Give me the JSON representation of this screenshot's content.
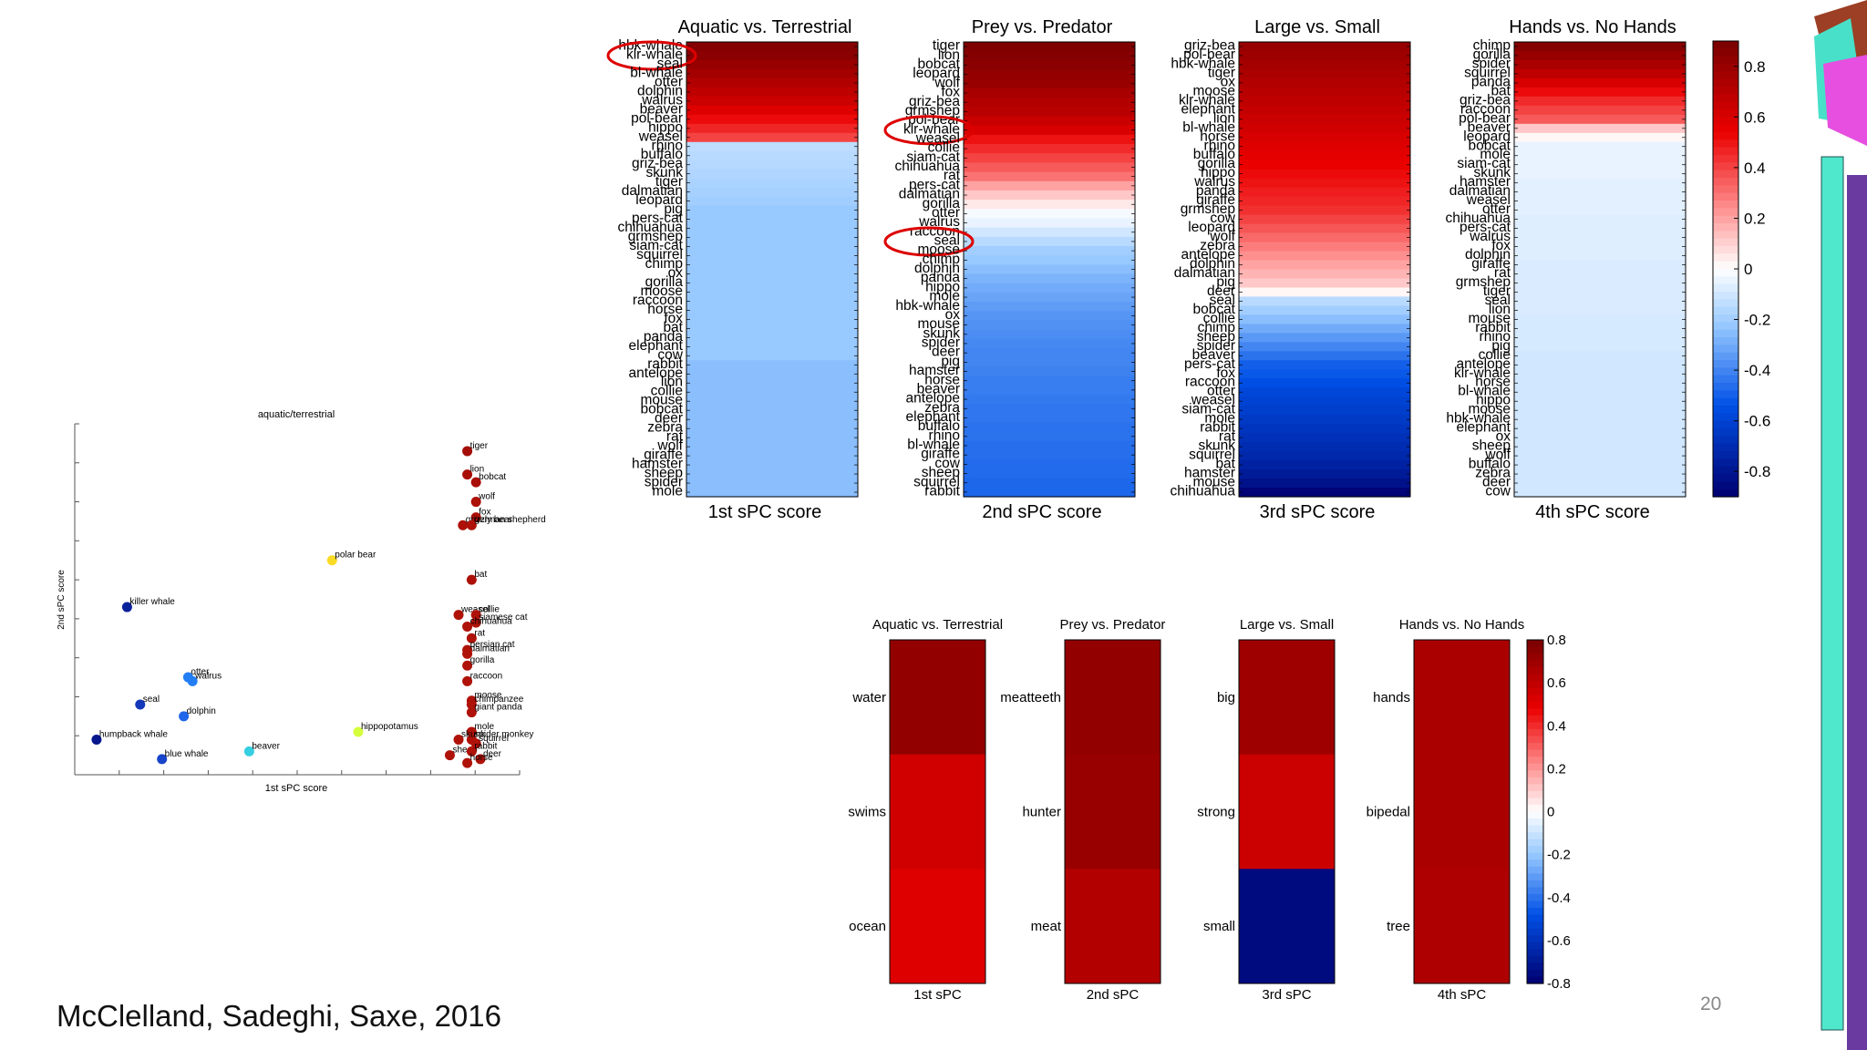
{
  "slide": {
    "citation": "McClelland, Sadeghi, Saxe, 2016",
    "page_number": "20"
  },
  "colorbar_ticks": [
    "0.8",
    "0.6",
    "0.4",
    "0.2",
    "0",
    "-0.2",
    "-0.4",
    "-0.6",
    "-0.8"
  ],
  "chart_data": [
    {
      "type": "heatmap",
      "title": "Aquatic vs. Terrestrial",
      "xlabel": "1st sPC score",
      "colormap": "diverging blue-white-red",
      "clim": [
        -0.9,
        0.9
      ],
      "labels": [
        "hbk-whale",
        "klr-whale",
        "seal",
        "bl-whale",
        "otter",
        "dolphin",
        "walrus",
        "beaver",
        "pol-bear",
        "hippo",
        "weasel",
        "rhino",
        "buffalo",
        "griz-bea",
        "skunk",
        "tiger",
        "dalmatian",
        "leopard",
        "pig",
        "pers-cat",
        "chihuahua",
        "grmshep",
        "siam-cat",
        "squirrel",
        "chimp",
        "ox",
        "gorilla",
        "moose",
        "raccoon",
        "horse",
        "fox",
        "bat",
        "panda",
        "elephant",
        "cow",
        "rabbit",
        "antelope",
        "lion",
        "collie",
        "mouse",
        "bobcat",
        "deer",
        "zebra",
        "rat",
        "wolf",
        "giraffe",
        "hamster",
        "sheep",
        "spider",
        "mole"
      ],
      "values": [
        0.86,
        0.84,
        0.8,
        0.76,
        0.72,
        0.68,
        0.64,
        0.58,
        0.52,
        0.46,
        0.4,
        -0.14,
        -0.15,
        -0.16,
        -0.17,
        -0.18,
        -0.19,
        -0.2,
        -0.22,
        -0.22,
        -0.22,
        -0.22,
        -0.22,
        -0.22,
        -0.22,
        -0.22,
        -0.22,
        -0.22,
        -0.22,
        -0.22,
        -0.22,
        -0.22,
        -0.22,
        -0.22,
        -0.22,
        -0.25,
        -0.25,
        -0.25,
        -0.25,
        -0.25,
        -0.25,
        -0.25,
        -0.25,
        -0.25,
        -0.25,
        -0.25,
        -0.25,
        -0.25,
        -0.25,
        -0.25
      ],
      "circled": [
        "klr-whale"
      ]
    },
    {
      "type": "heatmap",
      "title": "Prey vs. Predator",
      "xlabel": "2nd sPC score",
      "colormap": "diverging blue-white-red",
      "clim": [
        -0.9,
        0.9
      ],
      "labels": [
        "tiger",
        "lion",
        "bobcat",
        "leopard",
        "wolf",
        "fox",
        "griz-bea",
        "grmshep",
        "pol-bear",
        "klr-whale",
        "weasel",
        "collie",
        "siam-cat",
        "chihuahua",
        "rat",
        "pers-cat",
        "dalmatian",
        "gorilla",
        "otter",
        "walrus",
        "raccoon",
        "seal",
        "moose",
        "chimp",
        "dolphin",
        "panda",
        "hippo",
        "mole",
        "hbk-whale",
        "ox",
        "mouse",
        "skunk",
        "spider",
        "deer",
        "pig",
        "hamster",
        "horse",
        "beaver",
        "antelope",
        "zebra",
        "elephant",
        "buffalo",
        "rhino",
        "bl-whale",
        "giraffe",
        "cow",
        "sheep",
        "squirrel",
        "rabbit"
      ],
      "values": [
        0.88,
        0.86,
        0.84,
        0.82,
        0.8,
        0.75,
        0.72,
        0.7,
        0.65,
        0.6,
        0.5,
        0.45,
        0.4,
        0.35,
        0.3,
        0.2,
        0.12,
        0.05,
        -0.02,
        -0.05,
        -0.1,
        -0.15,
        -0.2,
        -0.22,
        -0.25,
        -0.28,
        -0.3,
        -0.32,
        -0.34,
        -0.36,
        -0.37,
        -0.38,
        -0.39,
        -0.4,
        -0.4,
        -0.41,
        -0.42,
        -0.42,
        -0.43,
        -0.44,
        -0.44,
        -0.45,
        -0.45,
        -0.46,
        -0.46,
        -0.47,
        -0.47,
        -0.48,
        -0.48
      ],
      "circled": [
        "klr-whale",
        "seal"
      ]
    },
    {
      "type": "heatmap",
      "title": "Large vs. Small",
      "xlabel": "3rd sPC score",
      "colormap": "diverging blue-white-red",
      "clim": [
        -0.9,
        0.9
      ],
      "labels": [
        "griz-bea",
        "pol-bear",
        "hbk-whale",
        "tiger",
        "ox",
        "moose",
        "klr-whale",
        "elephant",
        "lion",
        "bl-whale",
        "horse",
        "rhino",
        "buffalo",
        "gorilla",
        "hippo",
        "walrus",
        "panda",
        "giraffe",
        "grmshep",
        "cow",
        "leopard",
        "wolf",
        "zebra",
        "antelope",
        "dolphin",
        "dalmatian",
        "pig",
        "deer",
        "seal",
        "bobcat",
        "collie",
        "chimp",
        "sheep",
        "spider",
        "beaver",
        "pers-cat",
        "fox",
        "raccoon",
        "otter",
        "weasel",
        "siam-cat",
        "mole",
        "rabbit",
        "rat",
        "skunk",
        "squirrel",
        "bat",
        "hamster",
        "mouse",
        "chihuahua"
      ],
      "values": [
        0.8,
        0.78,
        0.76,
        0.74,
        0.72,
        0.7,
        0.68,
        0.66,
        0.64,
        0.62,
        0.6,
        0.58,
        0.56,
        0.54,
        0.52,
        0.5,
        0.48,
        0.46,
        0.44,
        0.4,
        0.36,
        0.32,
        0.28,
        0.24,
        0.2,
        0.16,
        0.12,
        0.02,
        -0.15,
        -0.2,
        -0.25,
        -0.3,
        -0.35,
        -0.4,
        -0.45,
        -0.5,
        -0.52,
        -0.55,
        -0.58,
        -0.6,
        -0.62,
        -0.64,
        -0.66,
        -0.68,
        -0.7,
        -0.72,
        -0.75,
        -0.78,
        -0.82,
        -0.88
      ],
      "circled": []
    },
    {
      "type": "heatmap",
      "title": "Hands vs. No Hands",
      "xlabel": "4th sPC score",
      "colormap": "diverging blue-white-red",
      "clim": [
        -0.9,
        0.9
      ],
      "labels": [
        "chimp",
        "gorilla",
        "spider",
        "squirrel",
        "panda",
        "bat",
        "griz-bea",
        "raccoon",
        "pol-bear",
        "beaver",
        "leopard",
        "bobcat",
        "mole",
        "siam-cat",
        "skunk",
        "hamster",
        "dalmatian",
        "weasel",
        "otter",
        "chihuahua",
        "pers-cat",
        "walrus",
        "fox",
        "dolphin",
        "giraffe",
        "rat",
        "grmshep",
        "tiger",
        "seal",
        "lion",
        "mouse",
        "rabbit",
        "rhino",
        "pig",
        "collie",
        "antelope",
        "klr-whale",
        "horse",
        "bl-whale",
        "hippo",
        "moose",
        "hbk-whale",
        "elephant",
        "ox",
        "sheep",
        "wolf",
        "buffalo",
        "zebra",
        "deer",
        "cow"
      ],
      "values": [
        0.86,
        0.8,
        0.74,
        0.68,
        0.6,
        0.52,
        0.45,
        0.4,
        0.35,
        0.12,
        0.02,
        -0.05,
        -0.05,
        -0.05,
        -0.05,
        -0.06,
        -0.06,
        -0.06,
        -0.06,
        -0.07,
        -0.07,
        -0.07,
        -0.07,
        -0.07,
        -0.08,
        -0.08,
        -0.08,
        -0.08,
        -0.08,
        -0.08,
        -0.09,
        -0.09,
        -0.09,
        -0.09,
        -0.1,
        -0.1,
        -0.1,
        -0.1,
        -0.1,
        -0.1,
        -0.1,
        -0.1,
        -0.1,
        -0.1,
        -0.1,
        -0.1,
        -0.1,
        -0.1,
        -0.1,
        -0.1
      ],
      "circled": []
    },
    {
      "type": "heatmap",
      "title": "Aquatic vs. Terrestrial",
      "xlabel": "1st sPC",
      "clim": [
        -0.8,
        0.8
      ],
      "labels": [
        "water",
        "swims",
        "ocean"
      ],
      "values": [
        0.82,
        0.62,
        0.58
      ]
    },
    {
      "type": "heatmap",
      "title": "Prey vs. Predator",
      "xlabel": "2nd sPC",
      "clim": [
        -0.8,
        0.8
      ],
      "labels": [
        "meatteeth",
        "hunter",
        "meat"
      ],
      "values": [
        0.82,
        0.8,
        0.72
      ]
    },
    {
      "type": "heatmap",
      "title": "Large vs. Small",
      "xlabel": "3rd sPC",
      "clim": [
        -0.8,
        0.8
      ],
      "labels": [
        "big",
        "strong",
        "small"
      ],
      "values": [
        0.78,
        0.64,
        -0.85
      ]
    },
    {
      "type": "heatmap",
      "title": "Hands vs. No Hands",
      "xlabel": "4th sPC",
      "clim": [
        -0.8,
        0.8
      ],
      "labels": [
        "hands",
        "bipedal",
        "tree"
      ],
      "values": [
        0.74,
        0.74,
        0.73
      ]
    },
    {
      "type": "scatter",
      "title": "aquatic/terrestrial",
      "xlabel": "1st sPC score",
      "ylabel": "2nd sPC score",
      "xlim": [
        -1,
        9.2
      ],
      "ylim": [
        -0.5,
        8.5
      ],
      "points": [
        {
          "label": "tiger",
          "x": 8.0,
          "y": 7.8,
          "v": 0.85
        },
        {
          "label": "lion",
          "x": 8.0,
          "y": 7.2,
          "v": 0.82
        },
        {
          "label": "bobcat",
          "x": 8.2,
          "y": 7.0,
          "v": 0.82
        },
        {
          "label": "wolf",
          "x": 8.2,
          "y": 6.5,
          "v": 0.8
        },
        {
          "label": "fox",
          "x": 8.2,
          "y": 6.1,
          "v": 0.8
        },
        {
          "label": "grizzly bear",
          "x": 7.9,
          "y": 5.9,
          "v": 0.8
        },
        {
          "label": "german shepherd",
          "x": 8.1,
          "y": 5.9,
          "v": 0.78
        },
        {
          "label": "polar bear",
          "x": 4.9,
          "y": 5.0,
          "v": 0.25
        },
        {
          "label": "bat",
          "x": 8.1,
          "y": 4.5,
          "v": 0.8
        },
        {
          "label": "killer whale",
          "x": 0.2,
          "y": 3.8,
          "v": -0.85
        },
        {
          "label": "weasel",
          "x": 7.8,
          "y": 3.6,
          "v": 0.78
        },
        {
          "label": "collie",
          "x": 8.2,
          "y": 3.6,
          "v": 0.78
        },
        {
          "label": "siamese cat",
          "x": 8.2,
          "y": 3.4,
          "v": 0.78
        },
        {
          "label": "chihuahua",
          "x": 8.0,
          "y": 3.3,
          "v": 0.78
        },
        {
          "label": "rat",
          "x": 8.1,
          "y": 3.0,
          "v": 0.78
        },
        {
          "label": "dalmatian",
          "x": 8.0,
          "y": 2.6,
          "v": 0.78
        },
        {
          "label": "persian cat",
          "x": 8.0,
          "y": 2.7,
          "v": 0.78
        },
        {
          "label": "gorilla",
          "x": 8.0,
          "y": 2.3,
          "v": 0.78
        },
        {
          "label": "otter",
          "x": 1.6,
          "y": 2.0,
          "v": -0.45
        },
        {
          "label": "walrus",
          "x": 1.7,
          "y": 1.9,
          "v": -0.45
        },
        {
          "label": "raccoon",
          "x": 8.0,
          "y": 1.9,
          "v": 0.78
        },
        {
          "label": "seal",
          "x": 0.5,
          "y": 1.3,
          "v": -0.75
        },
        {
          "label": "moose",
          "x": 8.1,
          "y": 1.4,
          "v": 0.78
        },
        {
          "label": "chimpanzee",
          "x": 8.1,
          "y": 1.3,
          "v": 0.78
        },
        {
          "label": "giant panda",
          "x": 8.1,
          "y": 1.1,
          "v": 0.78
        },
        {
          "label": "dolphin",
          "x": 1.5,
          "y": 1.0,
          "v": -0.55
        },
        {
          "label": "hippopotamus",
          "x": 5.5,
          "y": 0.6,
          "v": 0.15
        },
        {
          "label": "mole",
          "x": 8.1,
          "y": 0.6,
          "v": 0.78
        },
        {
          "label": "spider monkey",
          "x": 8.1,
          "y": 0.4,
          "v": 0.78
        },
        {
          "label": "humpback whale",
          "x": -0.5,
          "y": 0.4,
          "v": -0.9
        },
        {
          "label": "skunk",
          "x": 7.8,
          "y": 0.4,
          "v": 0.78
        },
        {
          "label": "squirrel",
          "x": 8.2,
          "y": 0.3,
          "v": 0.78
        },
        {
          "label": "beaver",
          "x": 3.0,
          "y": 0.1,
          "v": -0.2
        },
        {
          "label": "blue whale",
          "x": 1.0,
          "y": -0.1,
          "v": -0.7
        },
        {
          "label": "sheep",
          "x": 7.6,
          "y": 0.0,
          "v": 0.78
        },
        {
          "label": "rabbit",
          "x": 8.1,
          "y": 0.1,
          "v": 0.78
        },
        {
          "label": "deer",
          "x": 8.3,
          "y": -0.1,
          "v": 0.78
        },
        {
          "label": "horse",
          "x": 8.0,
          "y": -0.2,
          "v": 0.78
        }
      ]
    }
  ]
}
